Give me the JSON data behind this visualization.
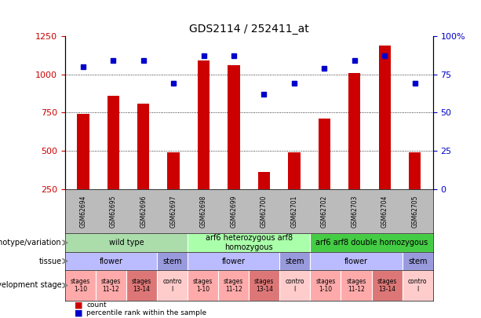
{
  "title": "GDS2114 / 252411_at",
  "samples": [
    "GSM62694",
    "GSM62695",
    "GSM62696",
    "GSM62697",
    "GSM62698",
    "GSM62699",
    "GSM62700",
    "GSM62701",
    "GSM62702",
    "GSM62703",
    "GSM62704",
    "GSM62705"
  ],
  "bar_values": [
    740,
    860,
    810,
    490,
    1090,
    1060,
    360,
    490,
    710,
    1010,
    1190,
    490
  ],
  "dot_values": [
    1050,
    1090,
    1090,
    940,
    1120,
    1120,
    870,
    940,
    1040,
    1090,
    1120,
    940
  ],
  "bar_color": "#cc0000",
  "dot_color": "#0000cc",
  "ylim_left": [
    250,
    1250
  ],
  "ylim_right": [
    0,
    100
  ],
  "yticks_left": [
    250,
    500,
    750,
    1000,
    1250
  ],
  "yticks_right": [
    0,
    25,
    50,
    75,
    100
  ],
  "grid_values": [
    500,
    750,
    1000
  ],
  "genotype_rows": [
    {
      "label": "wild type",
      "start": 0,
      "end": 4,
      "color": "#aaddaa"
    },
    {
      "label": "arf6 heterozygous arf8\nhomozygous",
      "start": 4,
      "end": 8,
      "color": "#aaffaa"
    },
    {
      "label": "arf6 arf8 double homozygous",
      "start": 8,
      "end": 12,
      "color": "#44cc44"
    }
  ],
  "tissue_rows": [
    {
      "label": "flower",
      "start": 0,
      "end": 3,
      "color": "#bbbbff"
    },
    {
      "label": "stem",
      "start": 3,
      "end": 4,
      "color": "#9999dd"
    },
    {
      "label": "flower",
      "start": 4,
      "end": 7,
      "color": "#bbbbff"
    },
    {
      "label": "stem",
      "start": 7,
      "end": 8,
      "color": "#9999dd"
    },
    {
      "label": "flower",
      "start": 8,
      "end": 11,
      "color": "#bbbbff"
    },
    {
      "label": "stem",
      "start": 11,
      "end": 12,
      "color": "#9999dd"
    }
  ],
  "dev_stage_rows": [
    {
      "label": "stages\n1-10",
      "start": 0,
      "end": 1,
      "color": "#ffaaaa"
    },
    {
      "label": "stages\n11-12",
      "start": 1,
      "end": 2,
      "color": "#ffaaaa"
    },
    {
      "label": "stages\n13-14",
      "start": 2,
      "end": 3,
      "color": "#dd7777"
    },
    {
      "label": "contro\nl",
      "start": 3,
      "end": 4,
      "color": "#ffcccc"
    },
    {
      "label": "stages\n1-10",
      "start": 4,
      "end": 5,
      "color": "#ffaaaa"
    },
    {
      "label": "stages\n11-12",
      "start": 5,
      "end": 6,
      "color": "#ffaaaa"
    },
    {
      "label": "stages\n13-14",
      "start": 6,
      "end": 7,
      "color": "#dd7777"
    },
    {
      "label": "contro\nl",
      "start": 7,
      "end": 8,
      "color": "#ffcccc"
    },
    {
      "label": "stages\n1-10",
      "start": 8,
      "end": 9,
      "color": "#ffaaaa"
    },
    {
      "label": "stages\n11-12",
      "start": 9,
      "end": 10,
      "color": "#ffaaaa"
    },
    {
      "label": "stages\n13-14",
      "start": 10,
      "end": 11,
      "color": "#dd7777"
    },
    {
      "label": "contro\nl",
      "start": 11,
      "end": 12,
      "color": "#ffcccc"
    }
  ],
  "row_labels": [
    "genotype/variation",
    "tissue",
    "development stage"
  ],
  "legend_items": [
    {
      "label": "count",
      "color": "#cc0000"
    },
    {
      "label": "percentile rank within the sample",
      "color": "#0000cc"
    }
  ],
  "xaxis_bg_color": "#bbbbbb",
  "bar_width": 0.4
}
